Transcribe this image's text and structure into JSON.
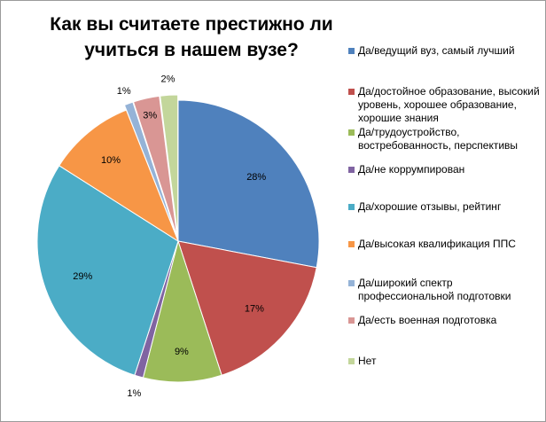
{
  "chart_data": {
    "type": "pie",
    "title": "Как вы считаете престижно ли учиться в нашем вузе?",
    "legend_position": "right",
    "slices": [
      {
        "label": "Да/ведущий вуз, самый лучший",
        "value": 28,
        "value_label": "28%",
        "color": "#4F81BD"
      },
      {
        "label": "Да/достойное образование, высокий уровень, хорошее образование, хорошие знания",
        "value": 17,
        "value_label": "17%",
        "color": "#C0504D"
      },
      {
        "label": "Да/трудоустройство, востребованность, перспективы",
        "value": 9,
        "value_label": "9%",
        "color": "#9BBB59"
      },
      {
        "label": "Да/не коррумпирован",
        "value": 1,
        "value_label": "1%",
        "color": "#8064A2"
      },
      {
        "label": "Да/хорошие отзывы, рейтинг",
        "value": 29,
        "value_label": "29%",
        "color": "#4BACC6"
      },
      {
        "label": "Да/высокая квалификация ППС",
        "value": 10,
        "value_label": "10%",
        "color": "#F79646"
      },
      {
        "label": "Да/широкий спектр профессиональной подготовки",
        "value": 1,
        "value_label": "1%",
        "color": "#95B3D7"
      },
      {
        "label": "Да/есть военная подготовка",
        "value": 3,
        "value_label": "3%",
        "color": "#D99694"
      },
      {
        "label": "Нет",
        "value": 2,
        "value_label": "2%",
        "color": "#C3D69B"
      }
    ]
  }
}
